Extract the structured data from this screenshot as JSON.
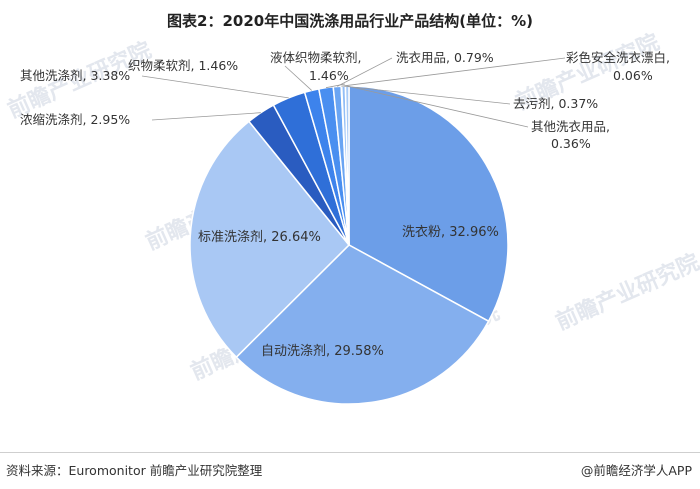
{
  "title": "图表2：2020年中国洗涤用品行业产品结构(单位：%)",
  "footer": {
    "source": "资料来源：Euromonitor 前瞻产业研究院整理",
    "brand": "@前瞻经济学人APP"
  },
  "watermark_text": "前瞻产业研究院",
  "chart_data": {
    "type": "pie",
    "unit": "%",
    "slices": [
      {
        "label": "洗衣粉",
        "value": 32.96,
        "color": "#6c9ee8"
      },
      {
        "label": "自动洗涤剂",
        "value": 29.58,
        "color": "#84afee"
      },
      {
        "label": "标准洗涤剂",
        "value": 26.64,
        "color": "#a9c8f4"
      },
      {
        "label": "浓缩洗涤剂",
        "value": 2.95,
        "color": "#2a5cc0"
      },
      {
        "label": "其他洗涤剂",
        "value": 3.38,
        "color": "#2f6fd8"
      },
      {
        "label": "织物柔软剂",
        "value": 1.46,
        "color": "#3d83ec"
      },
      {
        "label": "液体织物柔软剂",
        "value": 1.46,
        "color": "#4a8ff0"
      },
      {
        "label": "洗衣用品",
        "value": 0.79,
        "color": "#6aa5f3"
      },
      {
        "label": "彩色安全洗衣漂白",
        "value": 0.06,
        "color": "#7fb1f4"
      },
      {
        "label": "去污剂",
        "value": 0.37,
        "color": "#93bef6"
      },
      {
        "label": "其他洗衣用品",
        "value": 0.36,
        "color": "#a8cbf7"
      }
    ],
    "labels": [
      "洗衣粉, 32.96%",
      "自动洗涤剂, 29.58%",
      "标准洗涤剂, 26.64%",
      "浓缩洗涤剂, 2.95%",
      "其他洗涤剂, 3.38%",
      "织物柔软剂, 1.46%",
      "液体织物柔软剂,",
      "1.46%",
      "洗衣用品, 0.79%",
      "彩色安全洗衣漂白,",
      "0.06%",
      "去污剂, 0.37%",
      "其他洗衣用品,",
      "0.36%"
    ]
  }
}
